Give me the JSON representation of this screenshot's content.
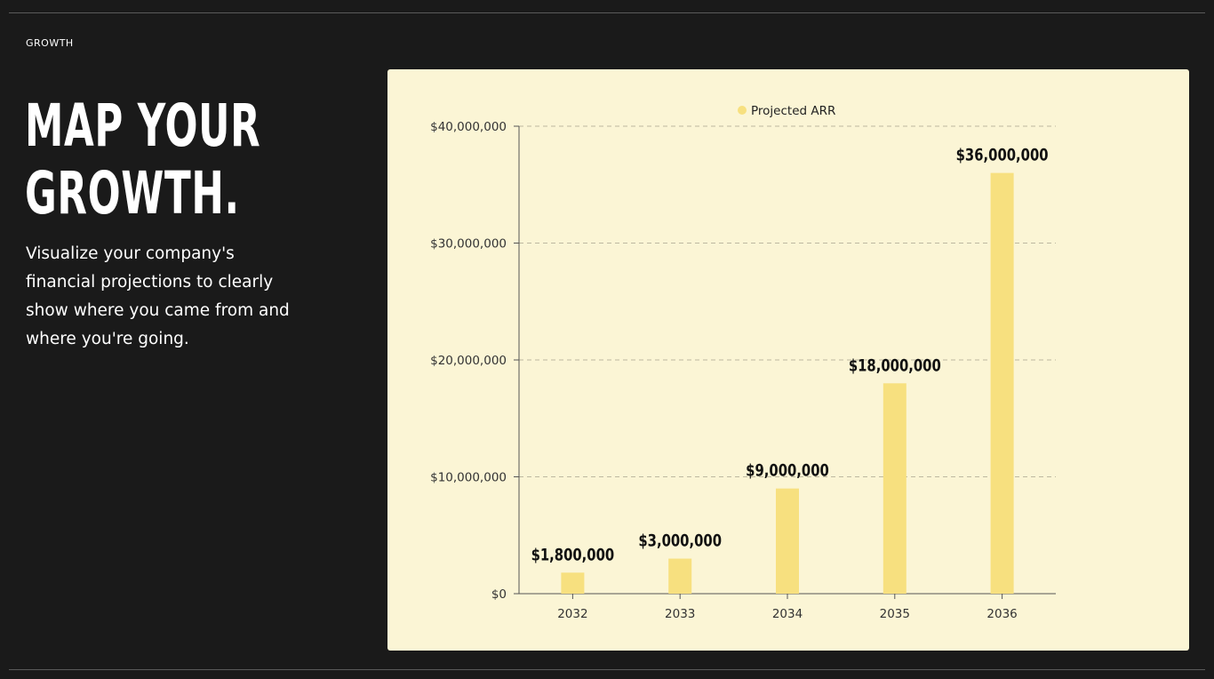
{
  "eyebrow": "GROWTH",
  "headline": {
    "line1": "MAP YOUR",
    "line2": "GROWTH."
  },
  "description": "Visualize your company's financial projections to clearly show where you came from and where you're going.",
  "chart_data": {
    "type": "bar",
    "categories": [
      "2032",
      "2033",
      "2034",
      "2035",
      "2036"
    ],
    "series": [
      {
        "name": "Projected ARR",
        "values": [
          1800000,
          3000000,
          9000000,
          18000000,
          36000000
        ],
        "color": "#f7e07f"
      }
    ],
    "data_labels": [
      "$1,800,000",
      "$3,000,000",
      "$9,000,000",
      "$18,000,000",
      "$36,000,000"
    ],
    "ylim": [
      0,
      40000000
    ],
    "y_ticks": [
      0,
      10000000,
      20000000,
      30000000,
      40000000
    ],
    "y_tick_labels": [
      "$0",
      "$10,000,000",
      "$20,000,000",
      "$30,000,000",
      "$40,000,000"
    ],
    "grid": true,
    "legend_position": "top"
  }
}
